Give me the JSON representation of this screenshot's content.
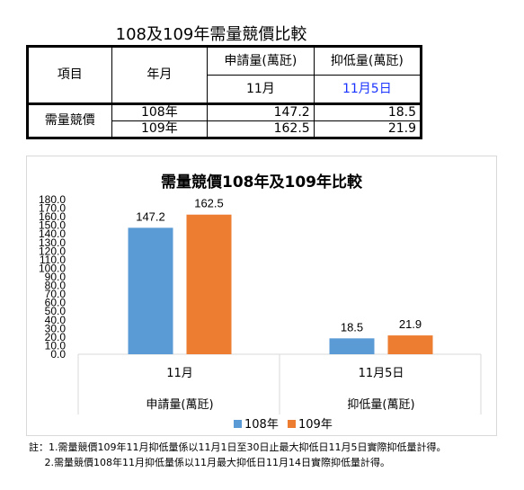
{
  "page_title": "108及109年需量競價比較",
  "table": {
    "col_item": "項目",
    "col_year": "年月",
    "col_apply": "申請量(萬瓩)",
    "col_suppress": "抑低量(萬瓩)",
    "sub_apply": "11月",
    "sub_suppress": "11月5日",
    "row_group": "需量競價",
    "rows": [
      {
        "year": "108年",
        "apply": "147.2",
        "suppress": "18.5"
      },
      {
        "year": "109年",
        "apply": "162.5",
        "suppress": "21.9"
      }
    ]
  },
  "chart_data": {
    "type": "bar",
    "title": "需量競價108年及109年比較",
    "categories": [
      "11月",
      "11月5日"
    ],
    "groups": [
      "申請量(萬瓩)",
      "抑低量(萬瓩)"
    ],
    "series": [
      {
        "name": "108年",
        "values": [
          147.2,
          18.5
        ],
        "color": "#5b9bd5"
      },
      {
        "name": "109年",
        "values": [
          162.5,
          21.9
        ],
        "color": "#ed7d31"
      }
    ],
    "ylim": [
      0,
      180
    ],
    "ytick_step": 10,
    "ytick_labels": [
      "0.0",
      "10.0",
      "20.0",
      "30.0",
      "40.0",
      "50.0",
      "60.0",
      "70.0",
      "80.0",
      "90.0",
      "100.0",
      "110.0",
      "120.0",
      "130.0",
      "140.0",
      "150.0",
      "160.0",
      "170.0",
      "180.0"
    ],
    "data_labels": [
      [
        "147.2",
        "18.5"
      ],
      [
        "162.5",
        "21.9"
      ]
    ],
    "legend_position": "bottom",
    "grid": false
  },
  "footnotes": [
    "註：1.需量競價109年11月抑低量係以11月1日至30日止最大抑低日11月5日實際抑低量計得。",
    "     2.需量競價108年11月抑低量係以11月最大抑低日11月14日實際抑低量計得。"
  ]
}
